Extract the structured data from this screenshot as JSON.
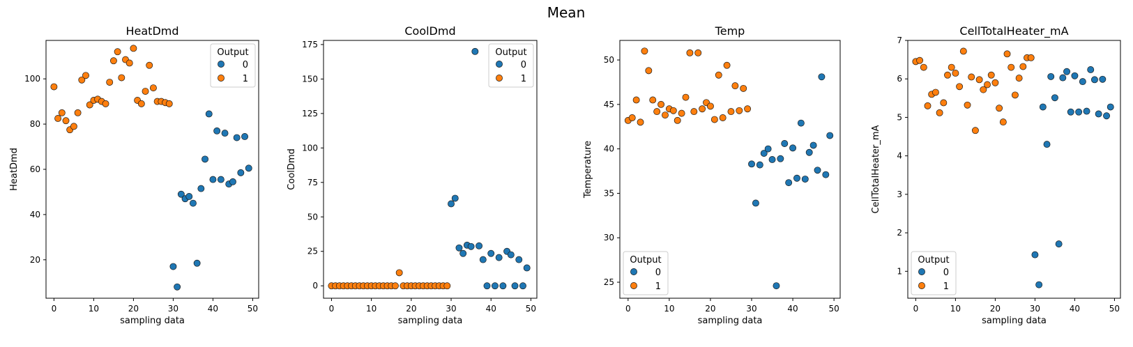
{
  "suptitle": "Mean",
  "colors": {
    "output_0": "#1f77b4",
    "output_1": "#ff7f0e",
    "edge": "#1a1a1a",
    "legend_border": "#cccccc"
  },
  "chart_data": [
    {
      "type": "scatter",
      "title": "HeatDmd",
      "xlabel": "sampling data",
      "ylabel": "HeatDmd",
      "xlim": [
        -2,
        51.5
      ],
      "ylim": [
        3,
        117
      ],
      "xticks": [
        0,
        10,
        20,
        30,
        40,
        50
      ],
      "yticks": [
        20,
        40,
        60,
        80,
        100
      ],
      "grid": false,
      "legend": {
        "title": "Output",
        "placement": "top-right",
        "entries": [
          "0",
          "1"
        ]
      },
      "series": [
        {
          "name": "1",
          "x": [
            0,
            1,
            2,
            3,
            4,
            5,
            6,
            7,
            8,
            9,
            10,
            11,
            12,
            13,
            14,
            15,
            16,
            17,
            18,
            19,
            20,
            21,
            22,
            23,
            24,
            25,
            26,
            27,
            28,
            29
          ],
          "y": [
            96.5,
            82.5,
            85,
            81.5,
            77.5,
            79,
            85,
            99.5,
            101.5,
            88.5,
            90.5,
            91,
            90,
            89,
            98.5,
            108,
            112,
            100.5,
            108.5,
            107,
            113.5,
            90.5,
            89,
            94.5,
            106,
            96,
            90,
            90,
            89.5,
            89
          ]
        },
        {
          "name": "0",
          "x": [
            30,
            31,
            32,
            33,
            34,
            35,
            36,
            37,
            38,
            39,
            40,
            41,
            42,
            43,
            44,
            45,
            46,
            47,
            48,
            49
          ],
          "y": [
            17,
            8,
            49,
            47,
            48,
            45,
            18.5,
            51.5,
            64.5,
            84.5,
            55.5,
            77,
            55.5,
            76,
            53.5,
            54.5,
            74,
            58.5,
            74.5,
            60.5
          ]
        }
      ]
    },
    {
      "type": "scatter",
      "title": "CoolDmd",
      "xlabel": "sampling data",
      "ylabel": "CoolDmd",
      "xlim": [
        -2,
        51.5
      ],
      "ylim": [
        -9,
        178
      ],
      "xticks": [
        0,
        10,
        20,
        30,
        40,
        50
      ],
      "yticks": [
        0,
        25,
        50,
        75,
        100,
        125,
        150,
        175
      ],
      "grid": false,
      "legend": {
        "title": "Output",
        "placement": "top-right",
        "entries": [
          "0",
          "1"
        ]
      },
      "series": [
        {
          "name": "1",
          "x": [
            0,
            1,
            2,
            3,
            4,
            5,
            6,
            7,
            8,
            9,
            10,
            11,
            12,
            13,
            14,
            15,
            16,
            17,
            18,
            19,
            20,
            21,
            22,
            23,
            24,
            25,
            26,
            27,
            28,
            29
          ],
          "y": [
            0,
            0,
            0,
            0,
            0,
            0,
            0,
            0,
            0,
            0,
            0,
            0,
            0,
            0,
            0,
            0,
            0,
            9.5,
            0,
            0,
            0,
            0,
            0,
            0,
            0,
            0,
            0,
            0,
            0,
            0
          ]
        },
        {
          "name": "0",
          "x": [
            30,
            31,
            32,
            33,
            34,
            35,
            36,
            37,
            38,
            39,
            40,
            41,
            42,
            43,
            44,
            45,
            46,
            47,
            48,
            49
          ],
          "y": [
            59.5,
            63.5,
            27.5,
            23.5,
            29.5,
            28.5,
            170,
            29,
            19,
            0,
            23.5,
            0,
            20.5,
            0,
            25,
            22.5,
            0,
            19,
            0,
            13
          ]
        }
      ]
    },
    {
      "type": "scatter",
      "title": "Temp",
      "xlabel": "sampling data",
      "ylabel": "Temperature",
      "xlim": [
        -2,
        51.5
      ],
      "ylim": [
        23.2,
        52.2
      ],
      "xticks": [
        0,
        10,
        20,
        30,
        40,
        50
      ],
      "yticks": [
        25,
        30,
        35,
        40,
        45,
        50
      ],
      "grid": false,
      "legend": {
        "title": "Output",
        "placement": "lower-left",
        "entries": [
          "0",
          "1"
        ]
      },
      "series": [
        {
          "name": "1",
          "x": [
            0,
            1,
            2,
            3,
            4,
            5,
            6,
            7,
            8,
            9,
            10,
            11,
            12,
            13,
            14,
            15,
            16,
            17,
            18,
            19,
            20,
            21,
            22,
            23,
            24,
            25,
            26,
            27,
            28,
            29
          ],
          "y": [
            43.2,
            43.5,
            45.5,
            43,
            51,
            48.8,
            45.5,
            44.2,
            45,
            43.8,
            44.5,
            44.3,
            43.2,
            44,
            45.8,
            50.8,
            44.2,
            50.8,
            44.5,
            45.2,
            44.8,
            43.3,
            48.3,
            43.5,
            49.4,
            44.2,
            47.1,
            44.3,
            46.8,
            44.5
          ]
        },
        {
          "name": "0",
          "x": [
            30,
            31,
            32,
            33,
            34,
            35,
            36,
            37,
            38,
            39,
            40,
            41,
            42,
            43,
            44,
            45,
            46,
            47,
            48,
            49
          ],
          "y": [
            38.3,
            33.9,
            38.2,
            39.5,
            40,
            38.8,
            24.6,
            38.9,
            40.6,
            36.2,
            40.1,
            36.7,
            42.9,
            36.6,
            39.6,
            40.4,
            37.6,
            48.1,
            37.1,
            41.5
          ]
        }
      ]
    },
    {
      "type": "scatter",
      "title": "CellTotalHeater_mA",
      "xlabel": "sampling data",
      "ylabel": "CellTotalHeater_mA",
      "xlim": [
        -2,
        51.5
      ],
      "ylim": [
        0.3,
        7.0
      ],
      "xticks": [
        0,
        10,
        20,
        30,
        40,
        50
      ],
      "yticks": [
        1,
        2,
        3,
        4,
        5,
        6,
        7
      ],
      "grid": false,
      "legend": {
        "title": "Output",
        "placement": "lower-left",
        "entries": [
          "0",
          "1"
        ]
      },
      "series": [
        {
          "name": "1",
          "x": [
            0,
            1,
            2,
            3,
            4,
            5,
            6,
            7,
            8,
            9,
            10,
            11,
            12,
            13,
            14,
            15,
            16,
            17,
            18,
            19,
            20,
            21,
            22,
            23,
            24,
            25,
            26,
            27,
            28,
            29
          ],
          "y": [
            6.45,
            6.48,
            6.3,
            5.3,
            5.6,
            5.65,
            5.12,
            5.38,
            6.1,
            6.3,
            6.15,
            5.8,
            6.72,
            5.32,
            6.05,
            4.66,
            5.98,
            5.72,
            5.85,
            6.1,
            5.9,
            5.24,
            4.88,
            6.65,
            6.3,
            5.58,
            6.02,
            6.32,
            6.55,
            6.55
          ]
        },
        {
          "name": "0",
          "x": [
            30,
            31,
            32,
            33,
            34,
            35,
            36,
            37,
            38,
            39,
            40,
            41,
            42,
            43,
            44,
            45,
            46,
            47,
            48,
            49
          ],
          "y": [
            1.43,
            0.65,
            5.27,
            4.3,
            6.06,
            5.51,
            1.71,
            6.03,
            6.19,
            5.14,
            6.08,
            5.14,
            5.93,
            5.16,
            6.24,
            5.98,
            5.09,
            5.99,
            5.04,
            5.27
          ]
        }
      ]
    }
  ]
}
